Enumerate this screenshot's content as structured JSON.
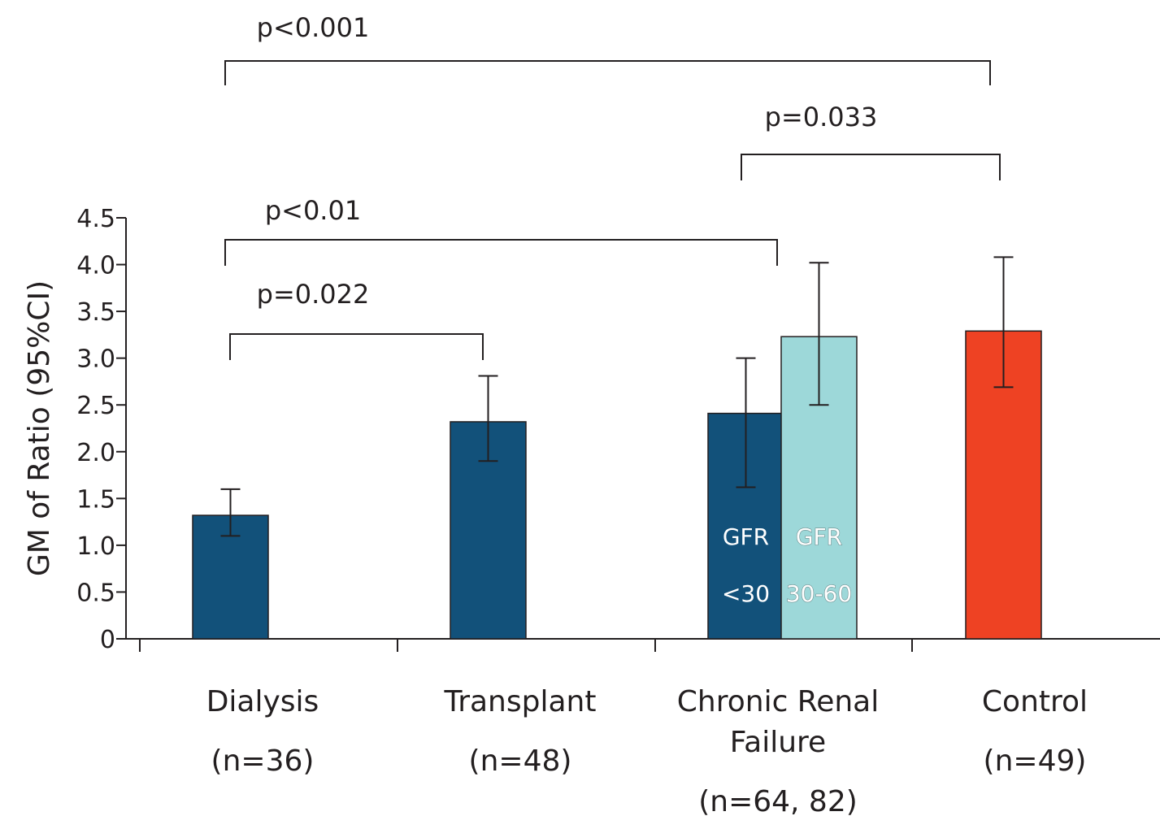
{
  "chart_data": {
    "type": "bar",
    "ylabel": "GM of Ratio (95%CI)",
    "ylim": [
      0,
      4.5
    ],
    "yticks": [
      {
        "value": 0,
        "label": "0"
      },
      {
        "value": 0.5,
        "label": "0.5"
      },
      {
        "value": 1.0,
        "label": "1.0"
      },
      {
        "value": 1.5,
        "label": "1.5"
      },
      {
        "value": 2.0,
        "label": "2.0"
      },
      {
        "value": 2.5,
        "label": "2.5"
      },
      {
        "value": 3.0,
        "label": "3.0"
      },
      {
        "value": 3.5,
        "label": "3.5"
      },
      {
        "value": 4.0,
        "label": "4.0"
      },
      {
        "value": 4.5,
        "label": "4.5"
      }
    ],
    "categories": [
      {
        "id": "dialysis",
        "lines": [
          "Dialysis",
          "(n=36)"
        ]
      },
      {
        "id": "transplant",
        "lines": [
          "Transplant",
          "(n=48)"
        ]
      },
      {
        "id": "crf",
        "lines": [
          "Chronic Renal",
          "Failure",
          "(n=64, 82)"
        ]
      },
      {
        "id": "control",
        "lines": [
          "Control",
          "(n=49)"
        ]
      }
    ],
    "bars": [
      {
        "category": "dialysis",
        "value": 1.32,
        "ci_low": 1.1,
        "ci_high": 1.6,
        "color": "#12517a"
      },
      {
        "category": "transplant",
        "value": 2.32,
        "ci_low": 1.9,
        "ci_high": 2.81,
        "color": "#12517a"
      },
      {
        "category": "crf",
        "group": "GFR <30",
        "value": 2.41,
        "ci_low": 1.62,
        "ci_high": 3.0,
        "color": "#12517a",
        "label_lines": [
          "GFR",
          "<30"
        ]
      },
      {
        "category": "crf",
        "group": "GFR 30-60",
        "value": 3.23,
        "ci_low": 2.5,
        "ci_high": 4.02,
        "color": "#9dd8d9",
        "label_lines": [
          "GFR",
          "30-60"
        ]
      },
      {
        "category": "control",
        "value": 3.29,
        "ci_low": 2.69,
        "ci_high": 4.08,
        "color": "#ee4223"
      }
    ],
    "comparisons": [
      {
        "label": "p<0.001",
        "from": "Dialysis",
        "to": "Control"
      },
      {
        "label": "p=0.033",
        "from": "GFR <30",
        "to": "Control"
      },
      {
        "label": "p<0.01",
        "from": "Dialysis",
        "to": "GFR <30"
      },
      {
        "label": "p=0.022",
        "from": "Dialysis",
        "to": "Transplant"
      }
    ],
    "grid": false
  }
}
